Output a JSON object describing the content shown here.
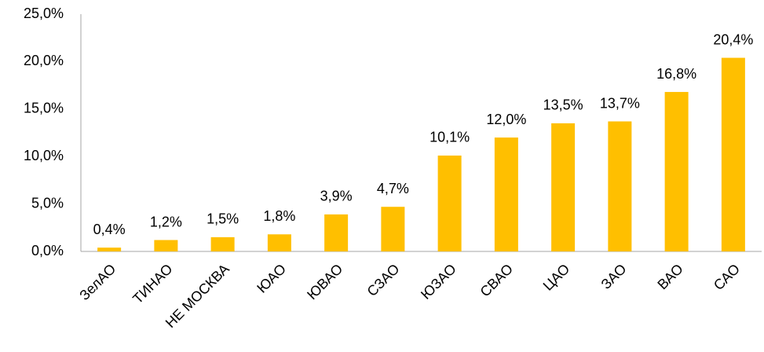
{
  "chart_data": {
    "type": "bar",
    "categories": [
      "ЗелАО",
      "ТИНАО",
      "НЕ МОСКВА",
      "ЮАО",
      "ЮВАО",
      "СЗАО",
      "ЮЗАО",
      "СВАО",
      "ЦАО",
      "ЗАО",
      "ВАО",
      "САО"
    ],
    "values": [
      0.4,
      1.2,
      1.5,
      1.8,
      3.9,
      4.7,
      10.1,
      12.0,
      13.5,
      13.7,
      16.8,
      20.4
    ],
    "value_labels": [
      "0,4%",
      "1,2%",
      "1,5%",
      "1,8%",
      "3,9%",
      "4,7%",
      "10,1%",
      "12,0%",
      "13,5%",
      "13,7%",
      "16,8%",
      "20,4%"
    ],
    "color": "#ffbf00",
    "ylim": [
      0,
      25
    ],
    "yticks": [
      {
        "value": 0,
        "label": "0,0%"
      },
      {
        "value": 5,
        "label": "5,0%"
      },
      {
        "value": 10,
        "label": "10,0%"
      },
      {
        "value": 15,
        "label": "15,0%"
      },
      {
        "value": 20,
        "label": "20,0%"
      },
      {
        "value": 25,
        "label": "25,0%"
      }
    ],
    "grid": false
  }
}
